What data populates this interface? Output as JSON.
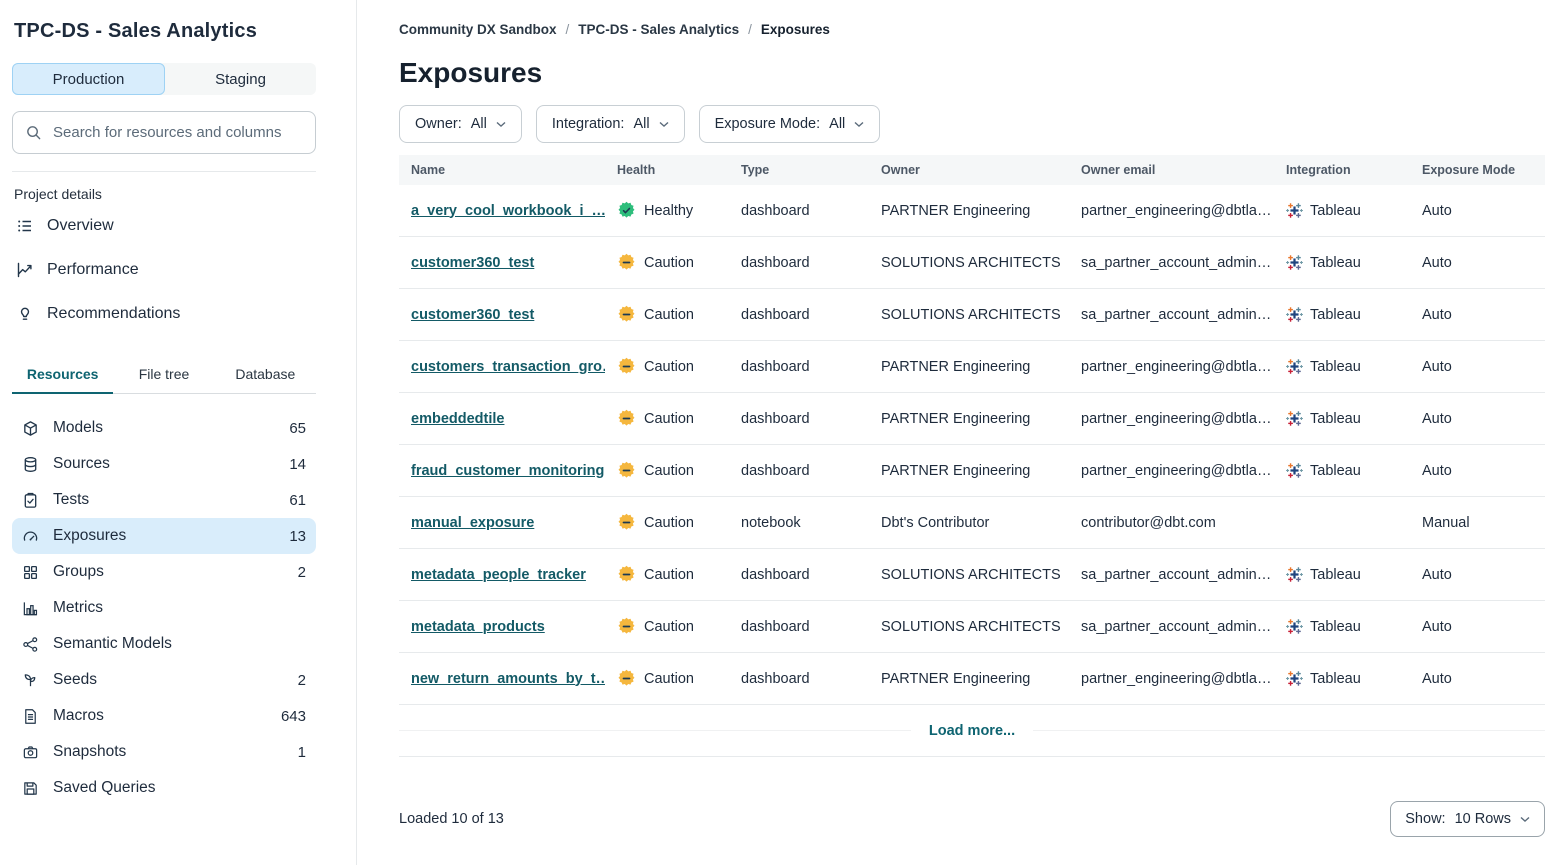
{
  "sidebar": {
    "title": "TPC-DS - Sales Analytics",
    "env_tabs": [
      {
        "label": "Production",
        "active": true
      },
      {
        "label": "Staging",
        "active": false
      }
    ],
    "search_placeholder": "Search for resources and columns",
    "project_details_label": "Project details",
    "project_links": [
      {
        "label": "Overview",
        "icon": "list-icon"
      },
      {
        "label": "Performance",
        "icon": "chart-line-icon"
      },
      {
        "label": "Recommendations",
        "icon": "lightbulb-icon"
      }
    ],
    "resource_tabs": [
      {
        "label": "Resources",
        "active": true
      },
      {
        "label": "File tree",
        "active": false
      },
      {
        "label": "Database",
        "active": false
      }
    ],
    "resources": [
      {
        "label": "Models",
        "count": "65",
        "icon": "cube-icon",
        "selected": false
      },
      {
        "label": "Sources",
        "count": "14",
        "icon": "database-icon",
        "selected": false
      },
      {
        "label": "Tests",
        "count": "61",
        "icon": "clipboard-check-icon",
        "selected": false
      },
      {
        "label": "Exposures",
        "count": "13",
        "icon": "gauge-icon",
        "selected": true
      },
      {
        "label": "Groups",
        "count": "2",
        "icon": "grid-icon",
        "selected": false
      },
      {
        "label": "Metrics",
        "count": "",
        "icon": "bar-chart-icon",
        "selected": false
      },
      {
        "label": "Semantic Models",
        "count": "",
        "icon": "network-icon",
        "selected": false
      },
      {
        "label": "Seeds",
        "count": "2",
        "icon": "seedling-icon",
        "selected": false
      },
      {
        "label": "Macros",
        "count": "643",
        "icon": "document-icon",
        "selected": false
      },
      {
        "label": "Snapshots",
        "count": "1",
        "icon": "camera-icon",
        "selected": false
      },
      {
        "label": "Saved Queries",
        "count": "",
        "icon": "save-icon",
        "selected": false
      }
    ]
  },
  "breadcrumb": {
    "separator": "/",
    "items": [
      "Community DX Sandbox",
      "TPC-DS - Sales Analytics",
      "Exposures"
    ]
  },
  "main": {
    "title": "Exposures",
    "filters": [
      {
        "label": "Owner:",
        "value": "All"
      },
      {
        "label": "Integration:",
        "value": "All"
      },
      {
        "label": "Exposure Mode:",
        "value": "All"
      }
    ],
    "table": {
      "columns": [
        "Name",
        "Health",
        "Type",
        "Owner",
        "Owner email",
        "Integration",
        "Exposure Mode"
      ],
      "rows": [
        {
          "name": "a_very_cool_workbook_i_…",
          "health": "Healthy",
          "type": "dashboard",
          "owner": "PARTNER Engineering",
          "owner_email": "partner_engineering@dbtla…",
          "integration": "Tableau",
          "exposure_mode": "Auto"
        },
        {
          "name": "customer360_test",
          "health": "Caution",
          "type": "dashboard",
          "owner": "SOLUTIONS ARCHITECTS",
          "owner_email": "sa_partner_account_admin…",
          "integration": "Tableau",
          "exposure_mode": "Auto"
        },
        {
          "name": "customer360_test",
          "health": "Caution",
          "type": "dashboard",
          "owner": "SOLUTIONS ARCHITECTS",
          "owner_email": "sa_partner_account_admin…",
          "integration": "Tableau",
          "exposure_mode": "Auto"
        },
        {
          "name": "customers_transaction_gro…",
          "health": "Caution",
          "type": "dashboard",
          "owner": "PARTNER Engineering",
          "owner_email": "partner_engineering@dbtla…",
          "integration": "Tableau",
          "exposure_mode": "Auto"
        },
        {
          "name": "embeddedtile",
          "health": "Caution",
          "type": "dashboard",
          "owner": "PARTNER Engineering",
          "owner_email": "partner_engineering@dbtla…",
          "integration": "Tableau",
          "exposure_mode": "Auto"
        },
        {
          "name": "fraud_customer_monitoring",
          "health": "Caution",
          "type": "dashboard",
          "owner": "PARTNER Engineering",
          "owner_email": "partner_engineering@dbtla…",
          "integration": "Tableau",
          "exposure_mode": "Auto"
        },
        {
          "name": "manual_exposure",
          "health": "Caution",
          "type": "notebook",
          "owner": "Dbt's Contributor",
          "owner_email": "contributor@dbt.com",
          "integration": "",
          "exposure_mode": "Manual"
        },
        {
          "name": "metadata_people_tracker",
          "health": "Caution",
          "type": "dashboard",
          "owner": "SOLUTIONS ARCHITECTS",
          "owner_email": "sa_partner_account_admin…",
          "integration": "Tableau",
          "exposure_mode": "Auto"
        },
        {
          "name": "metadata_products",
          "health": "Caution",
          "type": "dashboard",
          "owner": "SOLUTIONS ARCHITECTS",
          "owner_email": "sa_partner_account_admin…",
          "integration": "Tableau",
          "exposure_mode": "Auto"
        },
        {
          "name": "new_return_amounts_by_t…",
          "health": "Caution",
          "type": "dashboard",
          "owner": "PARTNER Engineering",
          "owner_email": "partner_engineering@dbtla…",
          "integration": "Tableau",
          "exposure_mode": "Auto"
        }
      ],
      "load_more_label": "Load more..."
    },
    "footer": {
      "loaded_text": "Loaded 10 of 13",
      "show_label": "Show:",
      "show_value": "10 Rows"
    }
  },
  "colors": {
    "link_teal": "#135a66",
    "active_tab_teal": "#0e6471",
    "healthy_green": "#2ebe7c",
    "caution_amber": "#f5b73e",
    "selected_blue": "#d9edfb",
    "production_pill_blue": "#d8edfc"
  }
}
